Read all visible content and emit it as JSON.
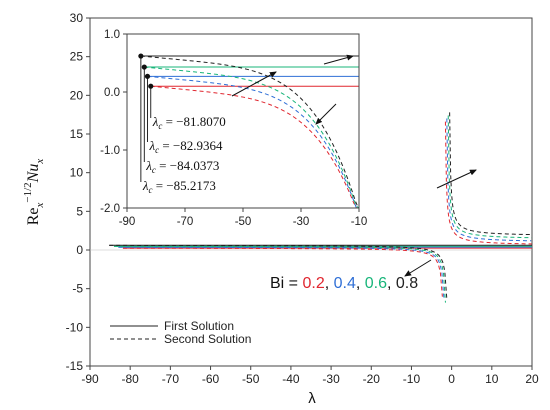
{
  "chart_data": {
    "type": "line",
    "xlabel": "λ",
    "ylabel_base": "Re",
    "ylabel_sub1": "x",
    "ylabel_sup": "−1/2",
    "ylabel_var": "Nu",
    "ylabel_sub2": "x",
    "xlim": [
      -90,
      20
    ],
    "ylim": [
      -15,
      30
    ],
    "xticks": [
      "-90",
      "-80",
      "-70",
      "-60",
      "-50",
      "-40",
      "-30",
      "-20",
      "-10",
      "0",
      "10",
      "20"
    ],
    "yticks": [
      "-15",
      "-10",
      "-5",
      "0",
      "5",
      "10",
      "15",
      "20",
      "25",
      "30"
    ],
    "bi_legend": {
      "prefix": "Bi = ",
      "items": [
        {
          "text": "0.2",
          "color": "#e0262f",
          "sep": ", "
        },
        {
          "text": "0.4",
          "color": "#2f6fd6",
          "sep": ", "
        },
        {
          "text": "0.6",
          "color": "#18b57a",
          "sep": ", "
        },
        {
          "text": "0.8",
          "color": "#222222",
          "sep": ""
        }
      ]
    },
    "style_legend": {
      "first": "First Solution",
      "second": "Second Solution"
    },
    "series": [
      {
        "Bi": 0.2,
        "color": "#e0262f",
        "lambda_c": -81.807,
        "first_upper": 0.15,
        "second_lower_y": -2.0,
        "second_lower_x": -13
      },
      {
        "Bi": 0.4,
        "color": "#2f6fd6",
        "lambda_c": -82.9364,
        "first_upper": 0.25,
        "second_lower_y": -2.0,
        "second_lower_x": -11.5
      },
      {
        "Bi": 0.6,
        "color": "#18b57a",
        "lambda_c": -84.0373,
        "first_upper": 0.38,
        "second_lower_y": -2.0,
        "second_lower_x": -10.5
      },
      {
        "Bi": 0.8,
        "color": "#222222",
        "lambda_c": -85.2173,
        "first_upper": 0.5,
        "second_lower_y": -2.0,
        "second_lower_x": -10
      }
    ],
    "inset": {
      "xlim": [
        -90,
        -10
      ],
      "ylim": [
        -2.0,
        1.0
      ],
      "xticks": [
        "-90",
        "-70",
        "-50",
        "-30",
        "-10"
      ],
      "yticks": [
        "1.0",
        "0.0",
        "-1.0",
        "-2.0"
      ],
      "lambda_labels": [
        {
          "prefix": "λ",
          "sub": "c",
          "text": " = −81.8070"
        },
        {
          "prefix": "λ",
          "sub": "c",
          "text": " = −82.9364"
        },
        {
          "prefix": "λ",
          "sub": "c",
          "text": " = −84.0373"
        },
        {
          "prefix": "λ",
          "sub": "c",
          "text": " = −85.2173"
        }
      ]
    }
  }
}
